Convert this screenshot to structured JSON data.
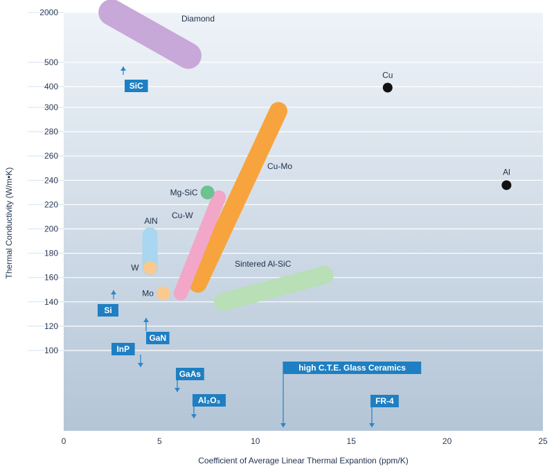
{
  "chart_data": {
    "type": "scatter",
    "xlabel": "Coefficient of Average Linear Thermal Expantion (ppm/K)",
    "ylabel": "Thermal Conductivity (W/m•K)",
    "xlim": [
      0,
      25
    ],
    "x_ticks": [
      "0",
      "5",
      "10",
      "15",
      "20",
      "25"
    ],
    "y_ticks": [
      "100",
      "120",
      "140",
      "160",
      "180",
      "200",
      "220",
      "240",
      "260",
      "280",
      "300",
      "400",
      "500",
      "2000"
    ],
    "y_scale": "piecewise",
    "grid": true,
    "legend": "none",
    "regions": [
      {
        "name": "Diamond",
        "color": "#c7a8d8",
        "from": [
          2.5,
          2000
        ],
        "to": [
          6.5,
          700
        ]
      },
      {
        "name": "Cu-Mo",
        "color": "#f7a43e",
        "from": [
          7.0,
          155
        ],
        "to": [
          11.2,
          297
        ]
      },
      {
        "name": "Cu-W",
        "color": "#f2a6c8",
        "from": [
          6.1,
          147
        ],
        "to": [
          8.1,
          226
        ]
      },
      {
        "name": "AlN",
        "color": "#a9d6f0",
        "from": [
          4.5,
          195
        ],
        "to": [
          4.5,
          168
        ]
      },
      {
        "name": "Sintered Al-SiC",
        "color": "#b8dfb5",
        "from": [
          8.3,
          140
        ],
        "to": [
          13.6,
          162
        ]
      }
    ],
    "points": [
      {
        "name": "Cu",
        "x": 16.9,
        "y": 395,
        "color": "#111111"
      },
      {
        "name": "Al",
        "x": 23.1,
        "y": 236,
        "color": "#111111"
      },
      {
        "name": "Mg-SiC",
        "x": 7.5,
        "y": 230,
        "color": "#6cc391"
      },
      {
        "name": "W",
        "x": 4.5,
        "y": 168,
        "color": "#f9c98f"
      },
      {
        "name": "Mo",
        "x": 5.2,
        "y": 147,
        "color": "#f9c98f"
      }
    ],
    "indicators": [
      {
        "name": "SiC",
        "x": 3.3,
        "direction": "up",
        "y": 500
      },
      {
        "name": "Si",
        "x": 2.6,
        "direction": "up",
        "y": 148
      },
      {
        "name": "GaN",
        "x": 4.3,
        "direction": "up",
        "y": 125
      },
      {
        "name": "InP",
        "x": 4.0,
        "direction": "down",
        "y": 90
      },
      {
        "name": "GaAs",
        "x": 6.0,
        "direction": "down",
        "y": 60
      },
      {
        "name": "Al₂O₃",
        "x": 6.7,
        "direction": "down",
        "y": 30
      },
      {
        "name": "high C.T.E. Glass Ceramics",
        "x": 11.5,
        "direction": "down",
        "y": 10
      },
      {
        "name": "FR-4",
        "x": 16.0,
        "direction": "down",
        "y": 10
      }
    ],
    "colors": {
      "plot_bg_top": "#eef3f8",
      "plot_bg_bottom": "#b4c5d7",
      "label_box": "#1e7fc2",
      "indicator": "#2a86c8"
    }
  }
}
